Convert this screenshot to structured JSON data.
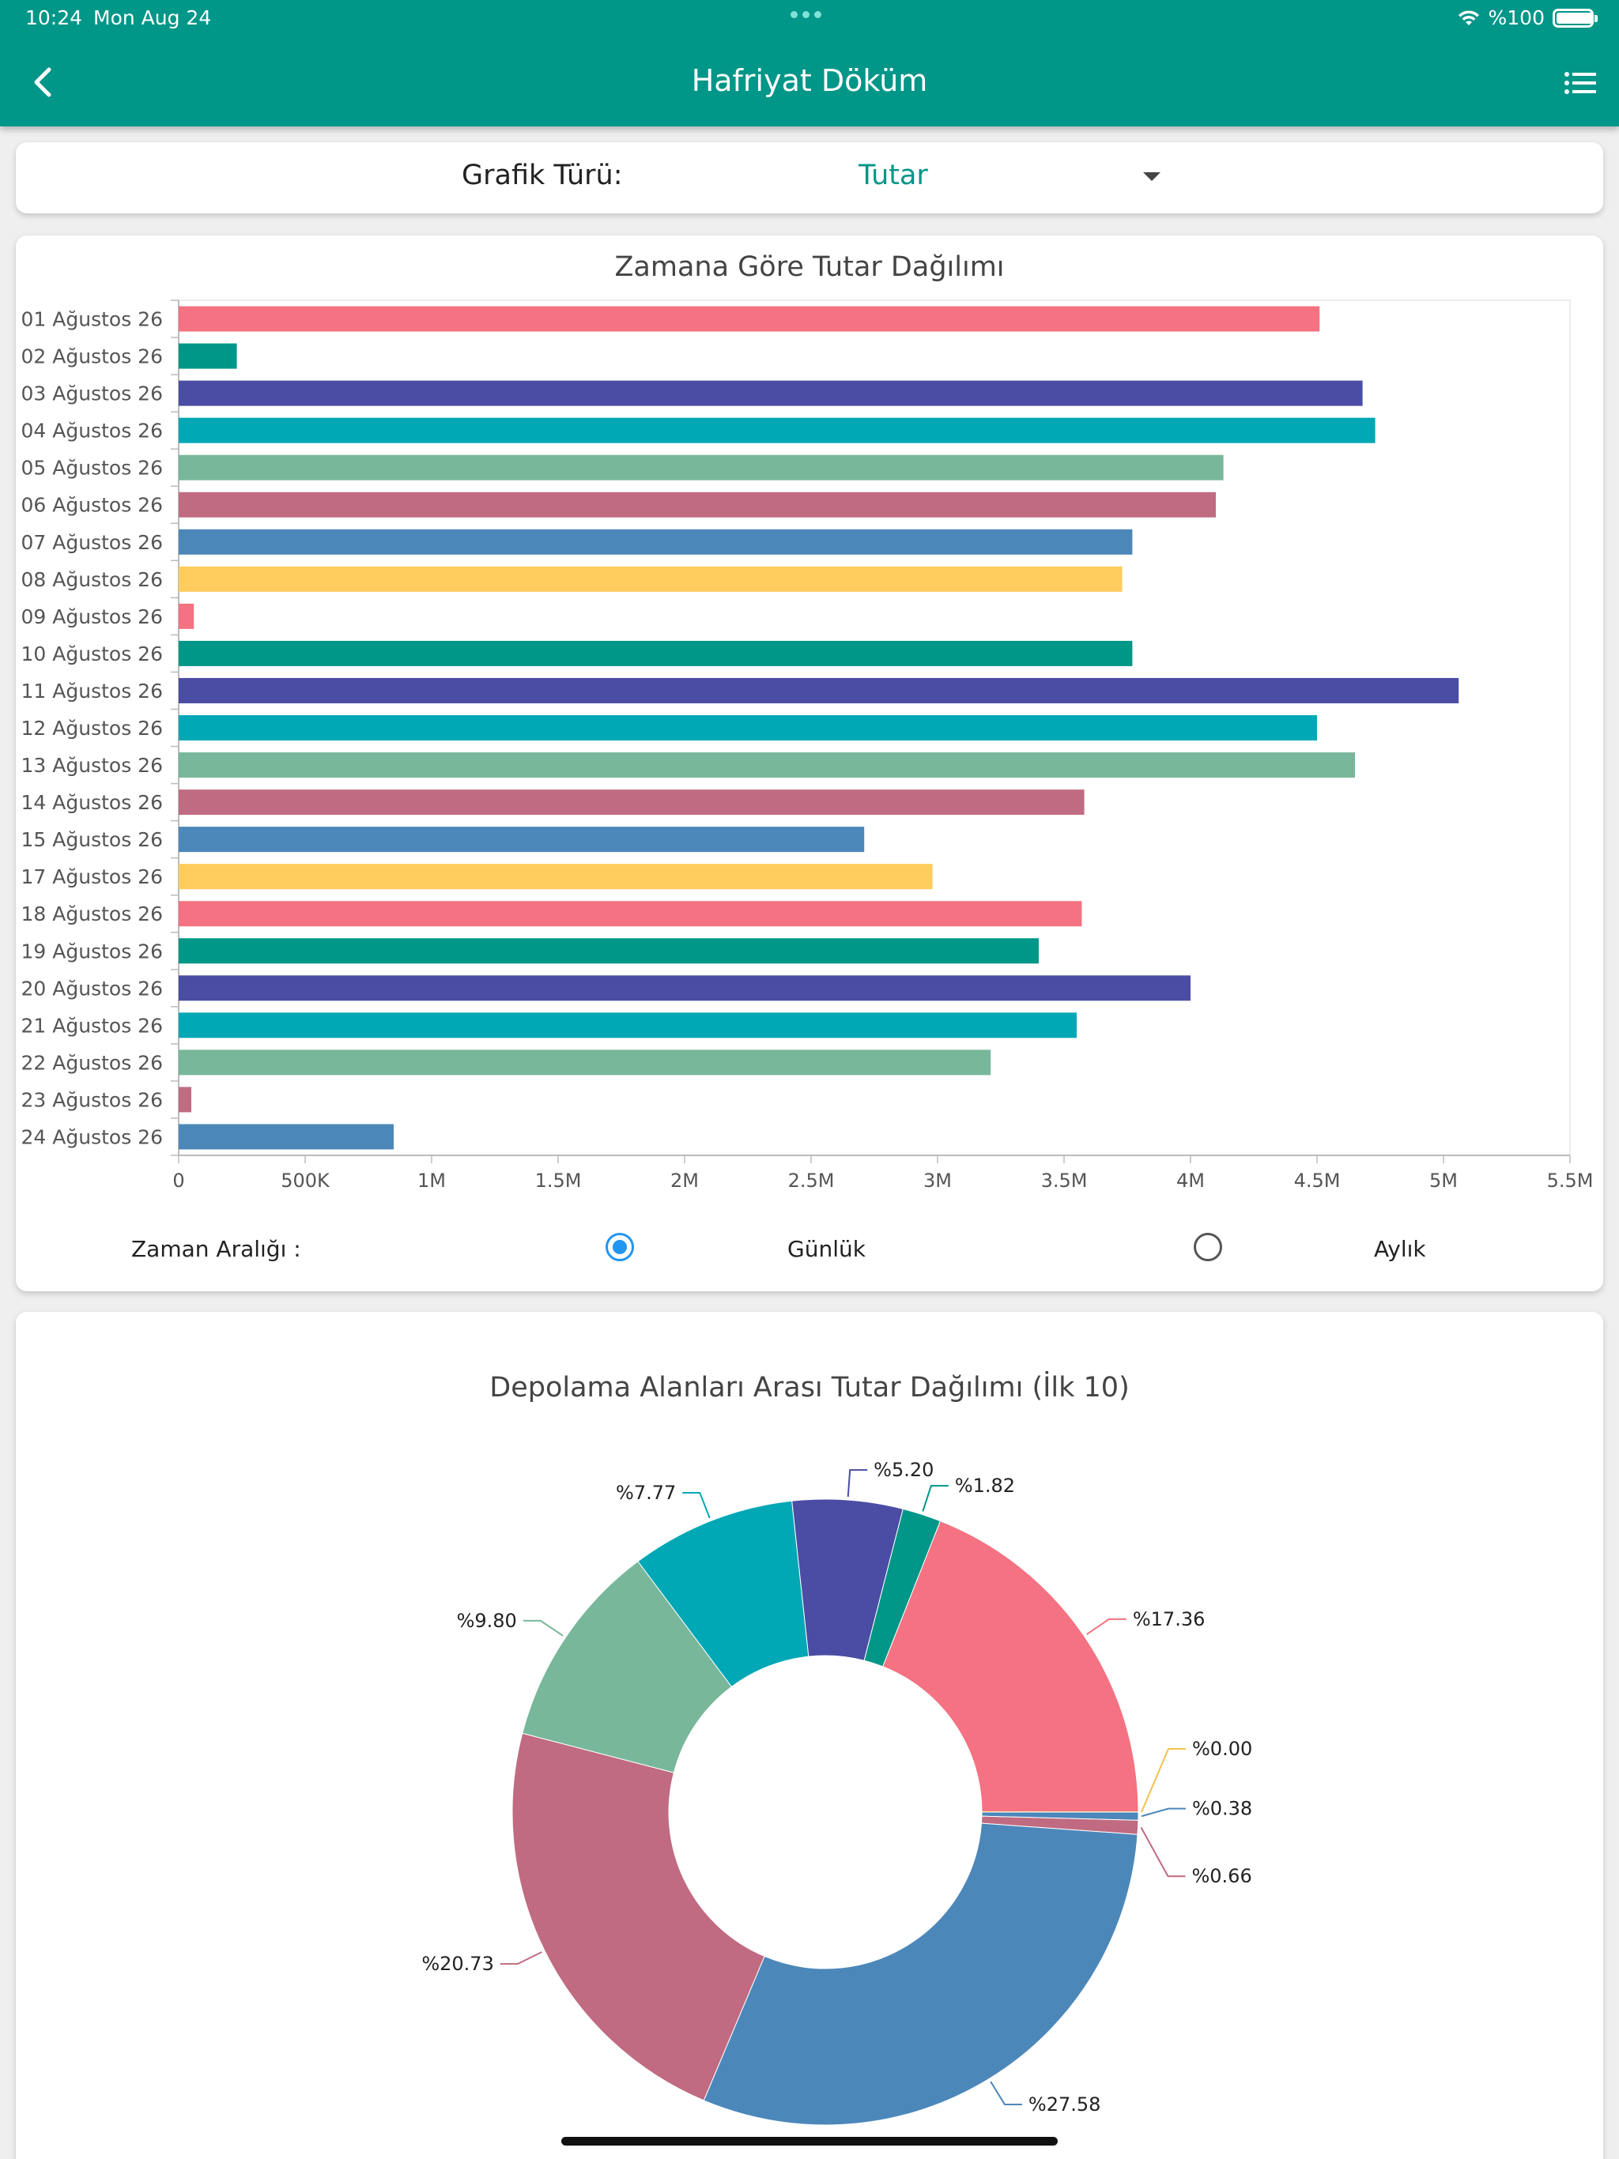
{
  "status_bar": {
    "time": "10:24",
    "date": "Mon Aug 24",
    "battery": "%100",
    "battery_level": 1.0
  },
  "header": {
    "title": "Hafriyat Döküm",
    "back_icon": "chevron-left-icon",
    "menu_icon": "list-icon",
    "background": "#009688"
  },
  "chart_type_selector": {
    "label": "Grafik Türü:",
    "value": "Tutar",
    "arrow_icon": "caret-down-icon"
  },
  "time_range": {
    "label": "Zaman Aralığı :",
    "options": [
      "Günlük",
      "Aylık"
    ],
    "selected": "Günlük"
  },
  "chart_data": [
    {
      "type": "bar",
      "orientation": "horizontal",
      "title": "Zamana Göre Tutar Dağılımı",
      "categories": [
        "01 Ağustos 26",
        "02 Ağustos 26",
        "03 Ağustos 26",
        "04 Ağustos 26",
        "05 Ağustos 26",
        "06 Ağustos 26",
        "07 Ağustos 26",
        "08 Ağustos 26",
        "09 Ağustos 26",
        "10 Ağustos 26",
        "11 Ağustos 26",
        "12 Ağustos 26",
        "13 Ağustos 26",
        "14 Ağustos 26",
        "15 Ağustos 26",
        "17 Ağustos 26",
        "18 Ağustos 26",
        "19 Ağustos 26",
        "20 Ağustos 26",
        "21 Ağustos 26",
        "22 Ağustos 26",
        "23 Ağustos 26",
        "24 Ağustos 26"
      ],
      "values": [
        4510000,
        230000,
        4680000,
        4730000,
        4130000,
        4100000,
        3770000,
        3730000,
        60000,
        3770000,
        5060000,
        4500000,
        4650000,
        3580000,
        2710000,
        2980000,
        3570000,
        3400000,
        4000000,
        3550000,
        3210000,
        50000,
        850000
      ],
      "colors": [
        "#f47281",
        "#009688",
        "#4a4da3",
        "#00a7b5",
        "#78b79a",
        "#c06b81",
        "#4c87ba",
        "#ffcc5e"
      ],
      "xlim": [
        0,
        5500000
      ],
      "x_ticks": [
        0,
        500000,
        1000000,
        1500000,
        2000000,
        2500000,
        3000000,
        3500000,
        4000000,
        4500000,
        5000000,
        5500000
      ],
      "x_tick_labels": [
        "0",
        "500K",
        "1M",
        "1.5M",
        "2M",
        "2.5M",
        "3M",
        "3.5M",
        "4M",
        "4.5M",
        "5M",
        "5.5M"
      ],
      "grid": false,
      "legend": "none"
    },
    {
      "type": "pie",
      "variant": "donut",
      "title": "Depolama Alanları Arası Tutar Dağılımı (İlk 10)",
      "slices": [
        {
          "label": "%17.36",
          "value": 17.36,
          "color": "#f47281"
        },
        {
          "label": "%0.00",
          "value": 0.0,
          "color": "#ffcc5e"
        },
        {
          "label": "%0.38",
          "value": 0.38,
          "color": "#4c87ba"
        },
        {
          "label": "%0.66",
          "value": 0.66,
          "color": "#c06b81"
        },
        {
          "label": "%27.58",
          "value": 27.58,
          "color": "#4c87ba"
        },
        {
          "label": "%20.73",
          "value": 20.73,
          "color": "#c06b81"
        },
        {
          "label": "%9.80",
          "value": 9.8,
          "color": "#78b79a"
        },
        {
          "label": "%7.77",
          "value": 7.77,
          "color": "#00a7b5"
        },
        {
          "label": "%5.20",
          "value": 5.2,
          "color": "#4a4da3"
        },
        {
          "label": "%1.82",
          "value": 1.82,
          "color": "#009688"
        }
      ],
      "legend": "none"
    }
  ]
}
